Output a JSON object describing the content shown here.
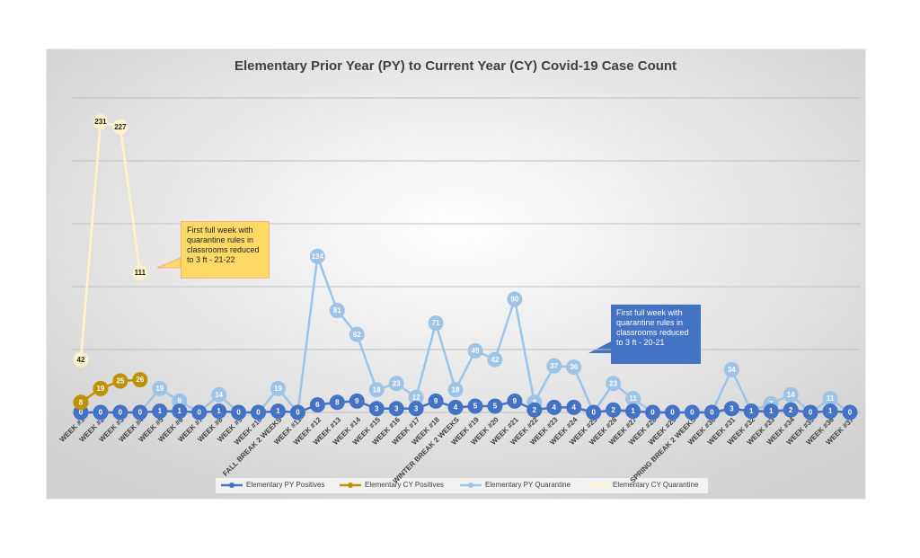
{
  "chart_data": {
    "type": "line",
    "title": "Elementary Prior Year (PY) to Current Year (CY) Covid-19 Case Count",
    "categories": [
      "WEEK #1",
      "WEEK #2",
      "WEEK #3",
      "WEEK #4",
      "WEEK #5",
      "WEEK #6",
      "WEEK #7",
      "WEEK #8",
      "WEEK #9",
      "WEEK #10",
      "FALL BREAK 2 WEEKS",
      "WEEK #11",
      "WEEK #12",
      "WEEK #13",
      "WEEK #14",
      "WEEK #15",
      "WEEK #16",
      "WEEK #17",
      "WEEK #18",
      "WINTER BREAK 2 WEEKS",
      "WEEK #19",
      "WEEK #20",
      "WEEK #21",
      "WEEK #22",
      "WEEK #23",
      "WEEK #24",
      "WEEK #25",
      "WEEK #26",
      "WEEK #27",
      "WEEK #28",
      "WEEK #29",
      "SPRING BREAK 2 WEEKS",
      "WEEK #30",
      "WEEK #31",
      "WEEK #32",
      "WEEK #33",
      "WEEK #34",
      "WEEK #35",
      "WEEK #36",
      "WEEK #37"
    ],
    "series": [
      {
        "name": "Elementary PY Positives",
        "color": "#4472c4",
        "values": [
          0,
          0,
          0,
          0,
          1,
          1,
          0,
          1,
          0,
          0,
          1,
          0,
          6,
          8,
          9,
          3,
          3,
          3,
          9,
          4,
          5,
          5,
          9,
          2,
          4,
          4,
          0,
          2,
          1,
          0,
          0,
          0,
          0,
          3,
          1,
          1,
          2,
          0,
          1,
          0
        ]
      },
      {
        "name": "Elementary CY Positives",
        "color": "#bf9000",
        "values": [
          8,
          19,
          25,
          26,
          null,
          null,
          null,
          null,
          null,
          null,
          null,
          null,
          null,
          null,
          null,
          null,
          null,
          null,
          null,
          null,
          null,
          null,
          null,
          null,
          null,
          null,
          null,
          null,
          null,
          null,
          null,
          null,
          null,
          null,
          null,
          null,
          null,
          null,
          null,
          null
        ]
      },
      {
        "name": "Elementary PY Quarantine",
        "color": "#9dc3e6",
        "values": [
          0,
          0,
          0,
          0,
          19,
          9,
          0,
          14,
          0,
          0,
          19,
          0,
          124,
          81,
          62,
          18,
          23,
          12,
          71,
          18,
          49,
          42,
          90,
          8,
          37,
          36,
          0,
          23,
          11,
          0,
          0,
          0,
          0,
          34,
          1,
          7,
          14,
          0,
          11,
          0
        ]
      },
      {
        "name": "Elementary CY Quarantine",
        "color": "#fff2cc",
        "values": [
          42,
          231,
          227,
          111,
          null,
          null,
          null,
          null,
          null,
          null,
          null,
          null,
          null,
          null,
          null,
          null,
          null,
          null,
          null,
          null,
          null,
          null,
          null,
          null,
          null,
          null,
          null,
          null,
          null,
          null,
          null,
          null,
          null,
          null,
          null,
          null,
          null,
          null,
          null,
          null
        ]
      }
    ],
    "ylim": [
      0,
      250
    ],
    "yticks": [
      0,
      50,
      100,
      150,
      200,
      250
    ],
    "grid": true,
    "legend": "bottom",
    "annotations": [
      "First full week with quarantine rules in classrooms reduced to 3 ft - 21-22",
      "First full week with quarantine rules in classrooms reduced to 3 ft - 20-21"
    ]
  }
}
